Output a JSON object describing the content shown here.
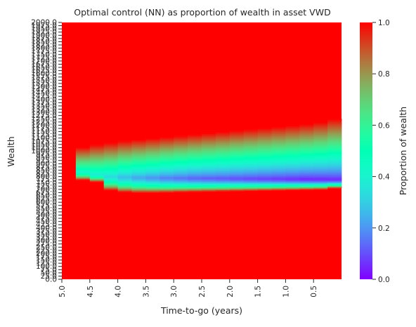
{
  "chart_data": {
    "type": "heatmap",
    "title": "Optimal control (NN) as proportion of wealth in asset VWD",
    "xlabel": "Time-to-go (years)",
    "ylabel": "Wealth",
    "colorbar_label": "Proportion of wealth",
    "colormap": "rainbow",
    "colorbar_ticks": [
      "0.0",
      "0.2",
      "0.4",
      "0.6",
      "0.8",
      "1.0"
    ],
    "color_range": [
      0,
      1
    ],
    "x_ticks": [
      "5.0",
      "4.5",
      "4.0",
      "3.5",
      "3.0",
      "2.5",
      "2.0",
      "1.5",
      "1.0",
      "0.5"
    ],
    "x_range_years": [
      5.0,
      0.0
    ],
    "y_range": [
      0,
      2000
    ],
    "y_tick_step": 25,
    "y_ticks_legible": [
      "0.0",
      "25.0",
      "50.0",
      "75.0",
      "100.0",
      "150.0",
      "650.0",
      "700.0",
      "725.0",
      "750.0",
      "1000.0",
      "1050.0",
      "1100.0",
      "1150.0",
      "1200.0",
      "1250.0",
      "1300.0",
      "1350.0",
      "2000.0"
    ],
    "time_columns": [
      5.0,
      4.75,
      4.5,
      4.25,
      4.0,
      3.75,
      3.5,
      3.25,
      3.0,
      2.75,
      2.5,
      2.25,
      2.0,
      1.75,
      1.5,
      1.25,
      1.0,
      0.75,
      0.5,
      0.25
    ],
    "regions": {
      "upper_boundary_wealth": [
        1000,
        1030,
        1050,
        1065,
        1080,
        1090,
        1100,
        1110,
        1120,
        1130,
        1140,
        1150,
        1160,
        1170,
        1180,
        1190,
        1200,
        1210,
        1225,
        1250
      ],
      "lower_boundary_wealth": [
        1000,
        775,
        760,
        695,
        680,
        675,
        675,
        677,
        680,
        682,
        684,
        686,
        688,
        690,
        692,
        694,
        696,
        698,
        700,
        710
      ],
      "min_proportion_wealth": [
        1000,
        840,
        820,
        805,
        800,
        797,
        795,
        793,
        792,
        791,
        790,
        789,
        788,
        787,
        786,
        785,
        784,
        783,
        782,
        780
      ],
      "min_proportion_value": [
        1.0,
        0.42,
        0.38,
        0.33,
        0.27,
        0.23,
        0.2,
        0.17,
        0.15,
        0.13,
        0.12,
        0.11,
        0.1,
        0.09,
        0.08,
        0.07,
        0.06,
        0.05,
        0.05,
        0.05
      ],
      "outside_value": 1.0
    },
    "grid": false
  }
}
